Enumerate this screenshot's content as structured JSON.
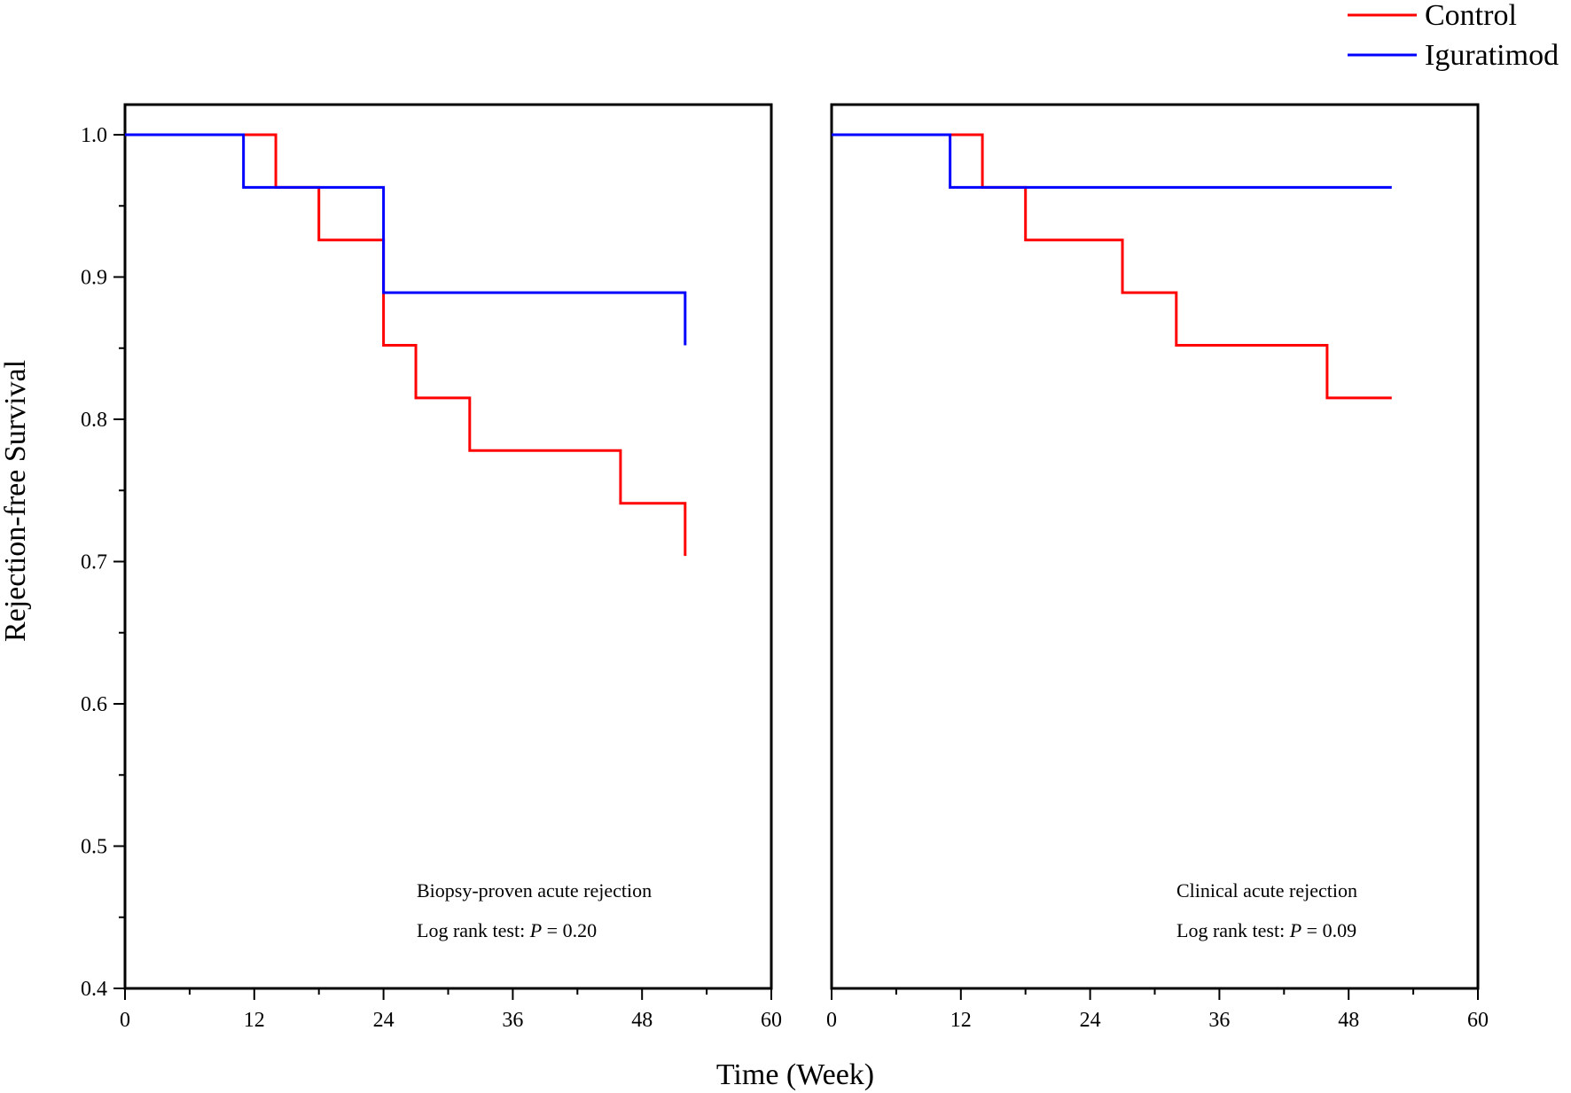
{
  "figure": {
    "ylabel": "Rejection-free Survival",
    "xlabel": "Time (Week)"
  },
  "legend": {
    "placement": "top-right",
    "entries": [
      {
        "name": "Control",
        "color": "#ff0000"
      },
      {
        "name": "Iguratimod",
        "color": "#0000ff"
      }
    ]
  },
  "chart_data": [
    {
      "type": "line",
      "step": true,
      "annotation": "Biopsy-proven acute rejection",
      "test_label": "Log rank test: ",
      "p_symbol": "P",
      "p_text": " = 0.20",
      "xlim": [
        0,
        60
      ],
      "ylim": [
        0.4,
        1.0
      ],
      "x_ticks": [
        0,
        12,
        24,
        36,
        48,
        60
      ],
      "x_tick_labels": [
        "0",
        "12",
        "24",
        "36",
        "48",
        "60"
      ],
      "y_ticks": [
        0.4,
        0.5,
        0.6,
        0.7,
        0.8,
        0.9,
        1.0
      ],
      "y_tick_labels": [
        "0.4",
        "0.5",
        "0.6",
        "0.7",
        "0.8",
        "0.9",
        "1.0"
      ],
      "series": [
        {
          "name": "Control",
          "color": "#ff0000",
          "x": [
            0,
            14,
            18,
            24,
            27,
            32,
            46,
            52
          ],
          "y": [
            1.0,
            0.963,
            0.926,
            0.852,
            0.815,
            0.778,
            0.741,
            0.704
          ]
        },
        {
          "name": "Iguratimod",
          "color": "#0000ff",
          "x": [
            0,
            11,
            24,
            52
          ],
          "y": [
            1.0,
            0.963,
            0.889,
            0.852
          ]
        }
      ]
    },
    {
      "type": "line",
      "step": true,
      "annotation": "Clinical acute rejection",
      "test_label": "Log rank test: ",
      "p_symbol": "P",
      "p_text": " = 0.09",
      "xlim": [
        0,
        60
      ],
      "ylim": [
        0.4,
        1.0
      ],
      "x_ticks": [
        0,
        12,
        24,
        36,
        48,
        60
      ],
      "x_tick_labels": [
        "0",
        "12",
        "24",
        "36",
        "48",
        "60"
      ],
      "series": [
        {
          "name": "Control",
          "color": "#ff0000",
          "x": [
            0,
            14,
            18,
            27,
            32,
            46,
            52
          ],
          "y": [
            1.0,
            0.963,
            0.926,
            0.889,
            0.852,
            0.815,
            0.815
          ]
        },
        {
          "name": "Iguratimod",
          "color": "#0000ff",
          "x": [
            0,
            11,
            52
          ],
          "y": [
            1.0,
            0.963,
            0.963
          ]
        }
      ]
    }
  ]
}
